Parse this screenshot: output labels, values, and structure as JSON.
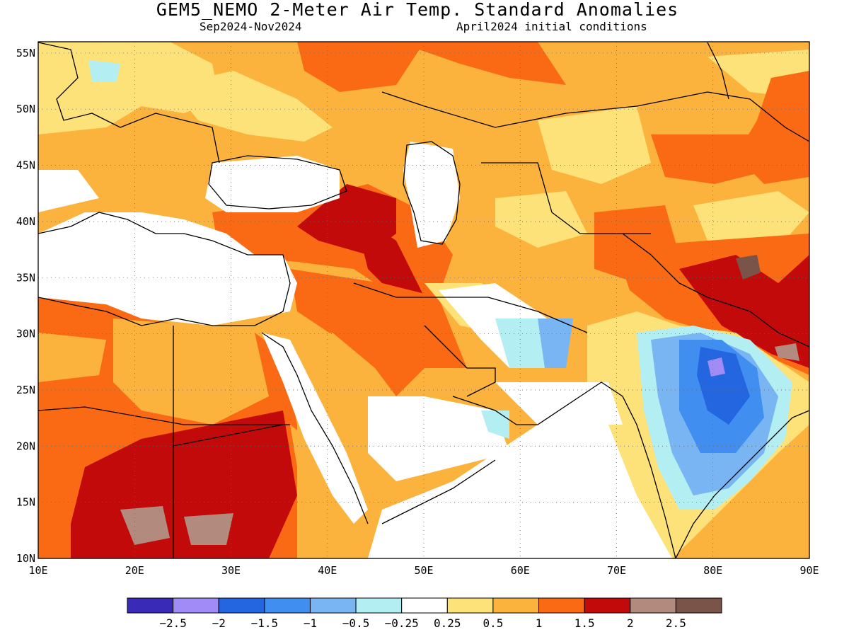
{
  "title": "GEM5_NEMO 2-Meter Air Temp. Standard Anomalies",
  "subtitle_left": "Sep2024-Nov2024",
  "subtitle_right": "April2024 initial conditions",
  "map": {
    "lon_range": [
      10,
      90
    ],
    "lat_range": [
      10,
      56
    ],
    "lon_ticks": [
      "10E",
      "20E",
      "30E",
      "40E",
      "50E",
      "60E",
      "70E",
      "80E",
      "90E"
    ],
    "lat_ticks": [
      "10N",
      "15N",
      "20N",
      "25N",
      "30N",
      "35N",
      "40N",
      "45N",
      "50N",
      "55N"
    ],
    "grid": "dotted"
  },
  "colorbar": {
    "colors": [
      "#3a2ab8",
      "#a18cf5",
      "#2366e0",
      "#3f8ef0",
      "#79b5f2",
      "#b2eef2",
      "#ffffff",
      "#fde27a",
      "#fbb33e",
      "#fa6a14",
      "#c30a0a",
      "#b28a7e",
      "#7a5448"
    ],
    "labels": [
      "-2.5",
      "-2",
      "-1.5",
      "-1",
      "-0.5",
      "-0.25",
      "0.25",
      "0.5",
      "1",
      "1.5",
      "2",
      "2.5"
    ]
  },
  "colors": {
    "ocean": "#ffffff",
    "land_outline": "#000000"
  }
}
